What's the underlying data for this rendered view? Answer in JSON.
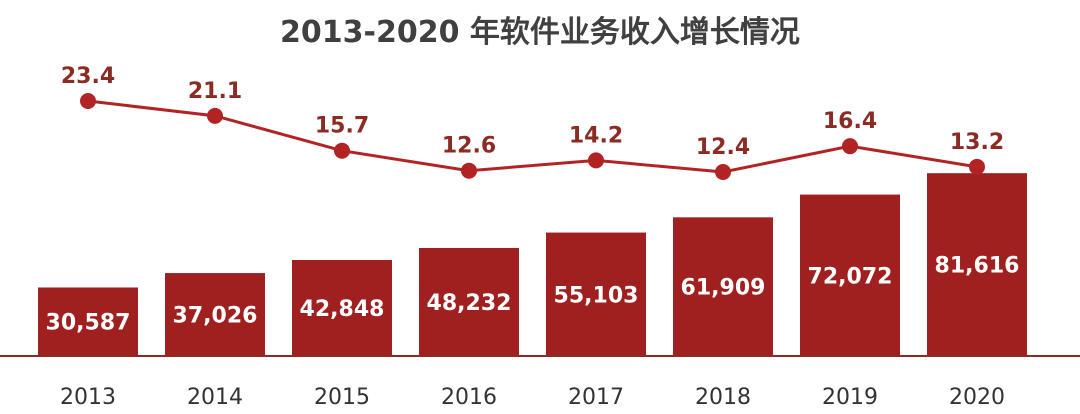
{
  "chart_data": {
    "type": "bar",
    "title": "2013-2020 年软件业务收入增长情况",
    "categories": [
      "2013",
      "2014",
      "2015",
      "2016",
      "2017",
      "2018",
      "2019",
      "2020"
    ],
    "series": [
      {
        "type": "bar",
        "values": [
          30587,
          37026,
          42848,
          48232,
          55103,
          61909,
          72072,
          81616
        ],
        "labels": [
          "30,587",
          "37,026",
          "42,848",
          "48,232",
          "55,103",
          "61,909",
          "72,072",
          "81,616"
        ],
        "color": "#a01f1f"
      },
      {
        "type": "line",
        "values": [
          23.4,
          21.1,
          15.7,
          12.6,
          14.2,
          12.4,
          16.4,
          13.2
        ],
        "labels": [
          "23.4",
          "21.1",
          "15.7",
          "12.6",
          "14.2",
          "12.4",
          "16.4",
          "13.2"
        ],
        "color": "#b22424"
      }
    ],
    "grid": false,
    "legend": "none"
  }
}
